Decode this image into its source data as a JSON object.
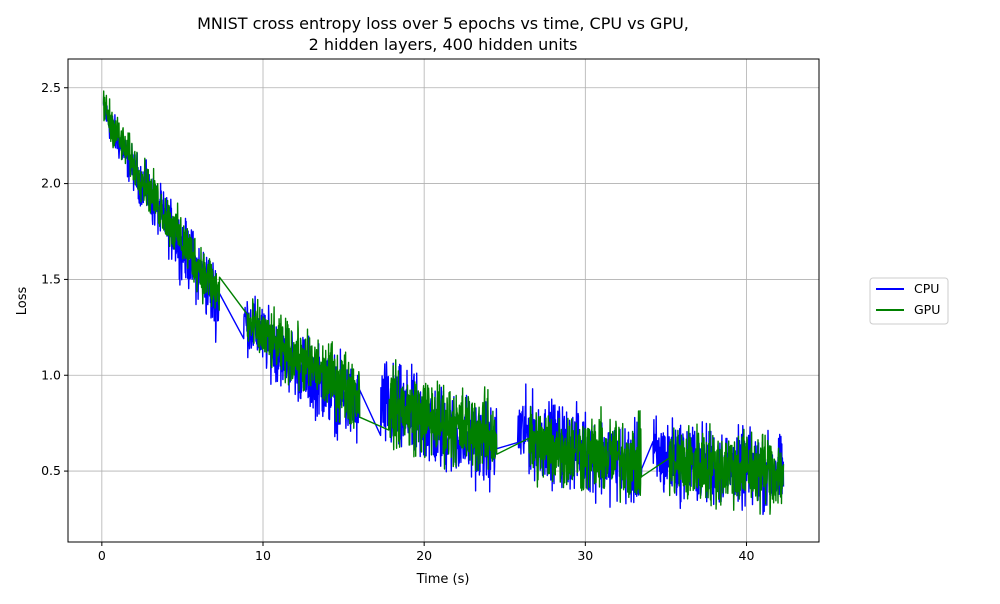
{
  "chart_data": {
    "type": "line",
    "title_line1": "MNIST cross entropy loss over 5 epochs vs time, CPU vs GPU,",
    "title_line2": "2 hidden layers, 400 hidden units",
    "xlabel": "Time (s)",
    "ylabel": "Loss",
    "xlim": [
      -2.1,
      44.5
    ],
    "ylim": [
      0.13,
      2.65
    ],
    "xticks": [
      0,
      10,
      20,
      30,
      40
    ],
    "yticks": [
      0.5,
      1.0,
      1.5,
      2.0,
      2.5
    ],
    "xtick_labels": [
      "0",
      "10",
      "20",
      "30",
      "40"
    ],
    "ytick_labels": [
      "0.5",
      "1.0",
      "1.5",
      "2.0",
      "2.5"
    ],
    "grid": true,
    "legend_placement": "right, outside plot",
    "series": [
      {
        "name": "CPU",
        "color": "#0000ff",
        "segments": [
          {
            "x_start": 0.1,
            "x_end": 7.3,
            "center_start": 2.4,
            "center_end": 1.38,
            "band_start": 0.12,
            "band_end": 0.28
          },
          {
            "x_start": 8.8,
            "x_end": 16.0,
            "center_start": 1.3,
            "center_end": 0.82,
            "band_start": 0.22,
            "band_end": 0.3
          },
          {
            "x_start": 17.3,
            "x_end": 24.5,
            "center_start": 0.85,
            "center_end": 0.62,
            "band_start": 0.35,
            "band_end": 0.3
          },
          {
            "x_start": 25.8,
            "x_end": 33.5,
            "center_start": 0.72,
            "center_end": 0.52,
            "band_start": 0.3,
            "band_end": 0.3
          },
          {
            "x_start": 34.2,
            "x_end": 42.3,
            "center_start": 0.58,
            "center_end": 0.48,
            "band_start": 0.3,
            "band_end": 0.28
          }
        ]
      },
      {
        "name": "GPU",
        "color": "#008000",
        "segments": [
          {
            "x_start": 0.1,
            "x_end": 7.3,
            "center_start": 2.42,
            "center_end": 1.42,
            "band_start": 0.14,
            "band_end": 0.22
          },
          {
            "x_start": 9.0,
            "x_end": 16.0,
            "center_start": 1.28,
            "center_end": 0.9,
            "band_start": 0.2,
            "band_end": 0.28
          },
          {
            "x_start": 17.8,
            "x_end": 24.5,
            "center_start": 0.85,
            "center_end": 0.68,
            "band_start": 0.3,
            "band_end": 0.3
          },
          {
            "x_start": 26.5,
            "x_end": 33.5,
            "center_start": 0.65,
            "center_end": 0.55,
            "band_start": 0.3,
            "band_end": 0.3
          },
          {
            "x_start": 35.2,
            "x_end": 42.3,
            "center_start": 0.55,
            "center_end": 0.5,
            "band_start": 0.3,
            "band_end": 0.3
          }
        ]
      }
    ]
  }
}
